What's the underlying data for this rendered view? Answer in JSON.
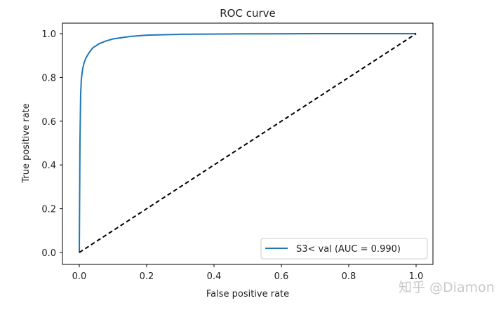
{
  "chart_data": {
    "type": "line",
    "title": "ROC curve",
    "xlabel": "False positive rate",
    "ylabel": "True positive rate",
    "xlim": [
      0,
      1
    ],
    "ylim": [
      0,
      1
    ],
    "xticks": [
      "0.0",
      "0.2",
      "0.4",
      "0.6",
      "0.8",
      "1.0"
    ],
    "yticks": [
      "0.0",
      "0.2",
      "0.4",
      "0.6",
      "0.8",
      "1.0"
    ],
    "grid": false,
    "legend_position": "lower-right",
    "series": [
      {
        "name": "S3< val (AUC = 0.990)",
        "color": "#1f77b4",
        "x": [
          0,
          0.002,
          0.004,
          0.006,
          0.01,
          0.015,
          0.02,
          0.03,
          0.04,
          0.06,
          0.08,
          0.1,
          0.15,
          0.2,
          0.3,
          0.5,
          0.7,
          1.0
        ],
        "y": [
          0,
          0.5,
          0.72,
          0.79,
          0.84,
          0.87,
          0.89,
          0.915,
          0.935,
          0.955,
          0.967,
          0.976,
          0.987,
          0.993,
          0.997,
          0.999,
          1.0,
          1.0
        ]
      },
      {
        "style": "dashed",
        "color": "#000000",
        "x": [
          0,
          1
        ],
        "y": [
          0,
          1
        ]
      }
    ]
  },
  "watermark": "知乎 @Diamon"
}
